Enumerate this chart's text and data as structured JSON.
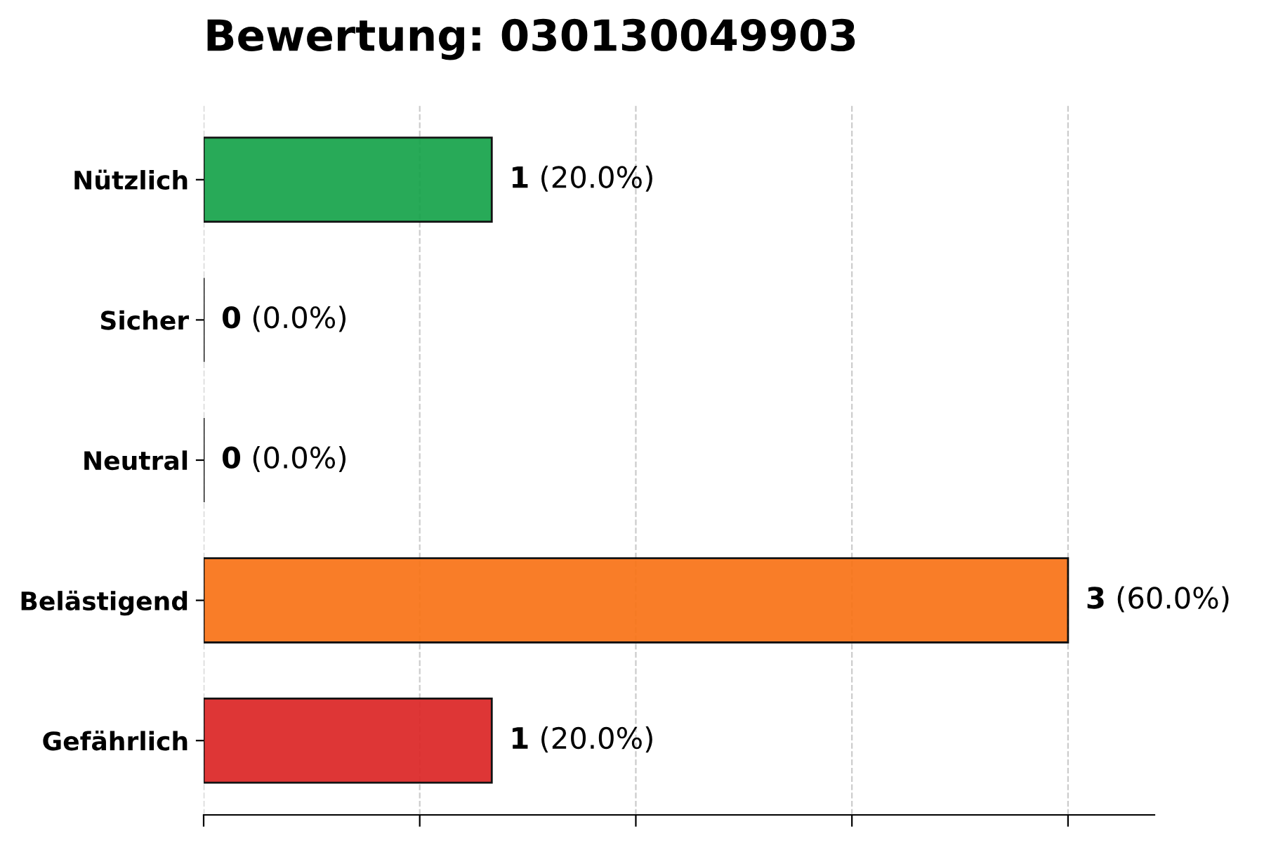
{
  "chart_data": {
    "type": "bar",
    "orientation": "horizontal",
    "title": "Bewertung: 030130049903",
    "categories": [
      "Nützlich",
      "Sicher",
      "Neutral",
      "Belästigend",
      "Gefährlich"
    ],
    "values": [
      1,
      0,
      0,
      3,
      1
    ],
    "colors": [
      "#16a34a",
      "#000000",
      "#000000",
      "#f97316",
      "#dc2626"
    ],
    "value_labels": [
      "1 (20.0%)",
      "0 (0.0%)",
      "0 (0.0%)",
      "3 (60.0%)",
      "1 (20.0%)"
    ],
    "xlim": [
      0,
      3.3
    ],
    "xticks": [
      {
        "value": 0,
        "label": null
      },
      {
        "value": 0.75,
        "label": null
      },
      {
        "value": 1.5,
        "label": null
      },
      {
        "value": 2.25,
        "label": null
      },
      {
        "value": 3,
        "label": null
      }
    ],
    "tick_labels": "y",
    "grid": "x"
  }
}
